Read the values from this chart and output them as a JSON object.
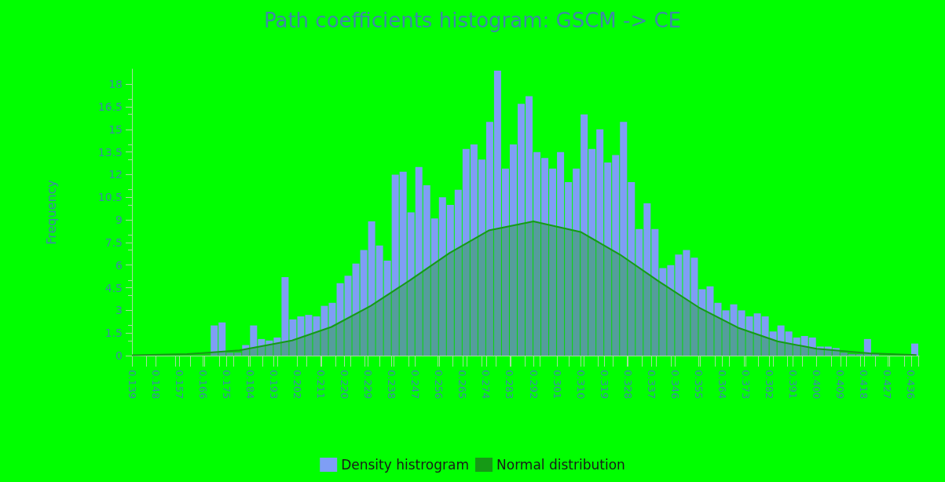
{
  "chart_data": {
    "type": "histogram",
    "title": "Path coefficients histogram: GSCM -> CE",
    "ylabel": "Frequency",
    "legend": "bottom",
    "grid": false,
    "xlim": [
      0.139,
      0.439
    ],
    "xticks": [
      0.139,
      0.148,
      0.157,
      0.166,
      0.175,
      0.184,
      0.193,
      0.202,
      0.211,
      {
        "value": 0.22,
        "label": "0.220"
      },
      0.229,
      0.238,
      0.247,
      0.256,
      0.265,
      0.274,
      0.283,
      0.292,
      0.301,
      {
        "value": 0.31,
        "label": "0.310"
      },
      0.319,
      0.328,
      0.337,
      0.346,
      0.355,
      0.364,
      0.373,
      0.382,
      0.391,
      {
        "value": 0.4,
        "label": "0.400"
      },
      0.409,
      0.418,
      0.427,
      0.436
    ],
    "ylim": [
      0,
      19
    ],
    "yticks": [
      0,
      1.5,
      3,
      4.5,
      6,
      7.5,
      9,
      10.5,
      12,
      13.5,
      15,
      16.5,
      18
    ],
    "series": [
      {
        "type": "histogram",
        "name": "Density histrogram",
        "color": "#7f9ef5",
        "bins": [
          0.139,
          0.142,
          0.145,
          0.148,
          0.151,
          0.154,
          0.157,
          0.16,
          0.163,
          0.166,
          0.169,
          0.172,
          0.175,
          0.178,
          0.181,
          0.184,
          0.187,
          0.19,
          0.193,
          0.196,
          0.199,
          0.202,
          0.205,
          0.208,
          0.211,
          0.214,
          0.217,
          0.22,
          0.223,
          0.226,
          0.229,
          0.232,
          0.235,
          0.238,
          0.241,
          0.244,
          0.247,
          0.25,
          0.253,
          0.256,
          0.259,
          0.262,
          0.265,
          0.268,
          0.271,
          0.274,
          0.277,
          0.28,
          0.283,
          0.286,
          0.289,
          0.292,
          0.295,
          0.298,
          0.301,
          0.304,
          0.307,
          0.31,
          0.313,
          0.316,
          0.319,
          0.322,
          0.325,
          0.328,
          0.331,
          0.334,
          0.337,
          0.34,
          0.343,
          0.346,
          0.349,
          0.352,
          0.355,
          0.358,
          0.361,
          0.364,
          0.367,
          0.37,
          0.373,
          0.376,
          0.379,
          0.382,
          0.385,
          0.388,
          0.391,
          0.394,
          0.397,
          0.4,
          0.403,
          0.406,
          0.409,
          0.412,
          0.415,
          0.418,
          0.421,
          0.424,
          0.427,
          0.43,
          0.433,
          0.436,
          0.439
        ],
        "values": [
          0,
          0,
          0,
          0,
          0,
          0,
          0,
          0,
          0,
          0,
          2.0,
          2.2,
          0.2,
          0.2,
          0.7,
          2.0,
          1.1,
          1.0,
          1.2,
          5.2,
          2.4,
          2.6,
          2.7,
          2.6,
          3.3,
          3.5,
          4.8,
          5.3,
          6.1,
          7.0,
          8.9,
          7.3,
          6.3,
          12.0,
          12.2,
          9.5,
          12.5,
          11.3,
          9.1,
          10.5,
          10.0,
          11.0,
          13.7,
          14.0,
          13.0,
          15.5,
          18.9,
          12.4,
          14.0,
          16.7,
          17.2,
          13.5,
          13.1,
          12.4,
          13.5,
          11.5,
          12.4,
          16.0,
          13.7,
          15.0,
          12.8,
          13.3,
          15.5,
          11.5,
          8.4,
          10.1,
          8.4,
          5.8,
          6.0,
          6.7,
          7.0,
          6.5,
          4.4,
          4.6,
          3.5,
          3.0,
          3.4,
          3.0,
          2.6,
          2.8,
          2.6,
          1.6,
          2.0,
          1.6,
          1.2,
          1.3,
          1.2,
          0.6,
          0.6,
          0.5,
          0.2,
          0.1,
          0.1,
          1.1,
          0.1,
          0,
          0,
          0,
          0,
          0.8
        ]
      },
      {
        "type": "area",
        "name": "Normal distribution",
        "color": "#169a16",
        "x": [
          0.139,
          0.16,
          0.18,
          0.2,
          0.215,
          0.23,
          0.245,
          0.26,
          0.275,
          0.292,
          0.31,
          0.325,
          0.34,
          0.355,
          0.37,
          0.385,
          0.4,
          0.42,
          0.438
        ],
        "values": [
          0.02,
          0.1,
          0.35,
          1.0,
          1.9,
          3.3,
          5.0,
          6.8,
          8.3,
          8.9,
          8.2,
          6.7,
          4.9,
          3.2,
          1.85,
          0.95,
          0.45,
          0.15,
          0.04
        ]
      }
    ]
  }
}
